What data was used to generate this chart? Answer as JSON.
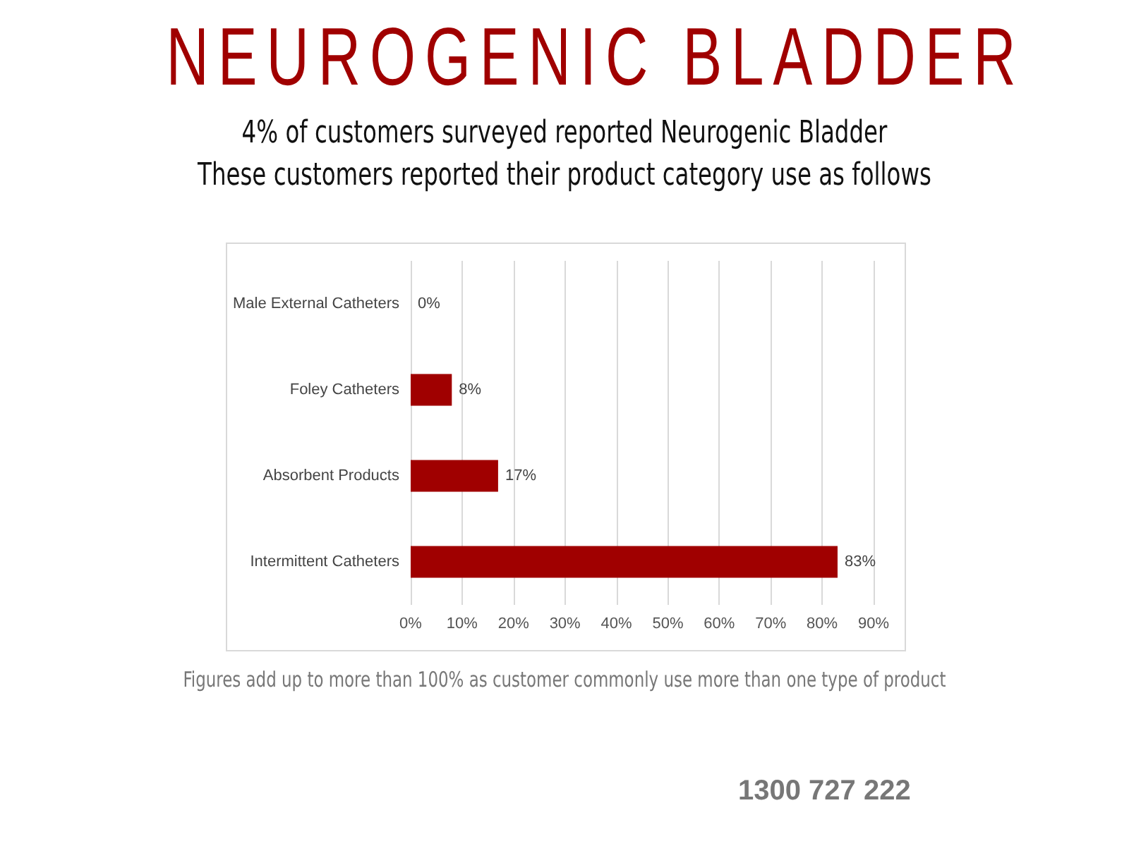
{
  "chart_data": {
    "type": "bar",
    "orientation": "horizontal",
    "title": "NEUROGENIC BLADDER",
    "subtitle": "4% of customers surveyed reported Neurogenic Bladder\nThese customers reported their product category use as follows",
    "categories": [
      "Male External Catheters",
      "Foley Catheters",
      "Absorbent Products",
      "Intermittent Catheters"
    ],
    "values": [
      0,
      8,
      17,
      83
    ],
    "value_labels": [
      "0%",
      "8%",
      "17%",
      "83%"
    ],
    "color": "#a00000",
    "xlim": [
      0,
      90
    ],
    "xticks": [
      {
        "value": 0,
        "label": "0%"
      },
      {
        "value": 10,
        "label": "10%"
      },
      {
        "value": 20,
        "label": "20%"
      },
      {
        "value": 30,
        "label": "30%"
      },
      {
        "value": 40,
        "label": "40%"
      },
      {
        "value": 50,
        "label": "50%"
      },
      {
        "value": 60,
        "label": "60%"
      },
      {
        "value": 70,
        "label": "70%"
      },
      {
        "value": 80,
        "label": "80%"
      },
      {
        "value": 90,
        "label": "90%"
      }
    ],
    "grid": "x",
    "annotations": [
      "Figures add up to more than 100% as customer commonly use more than one type of product",
      "1300 727 222"
    ]
  }
}
